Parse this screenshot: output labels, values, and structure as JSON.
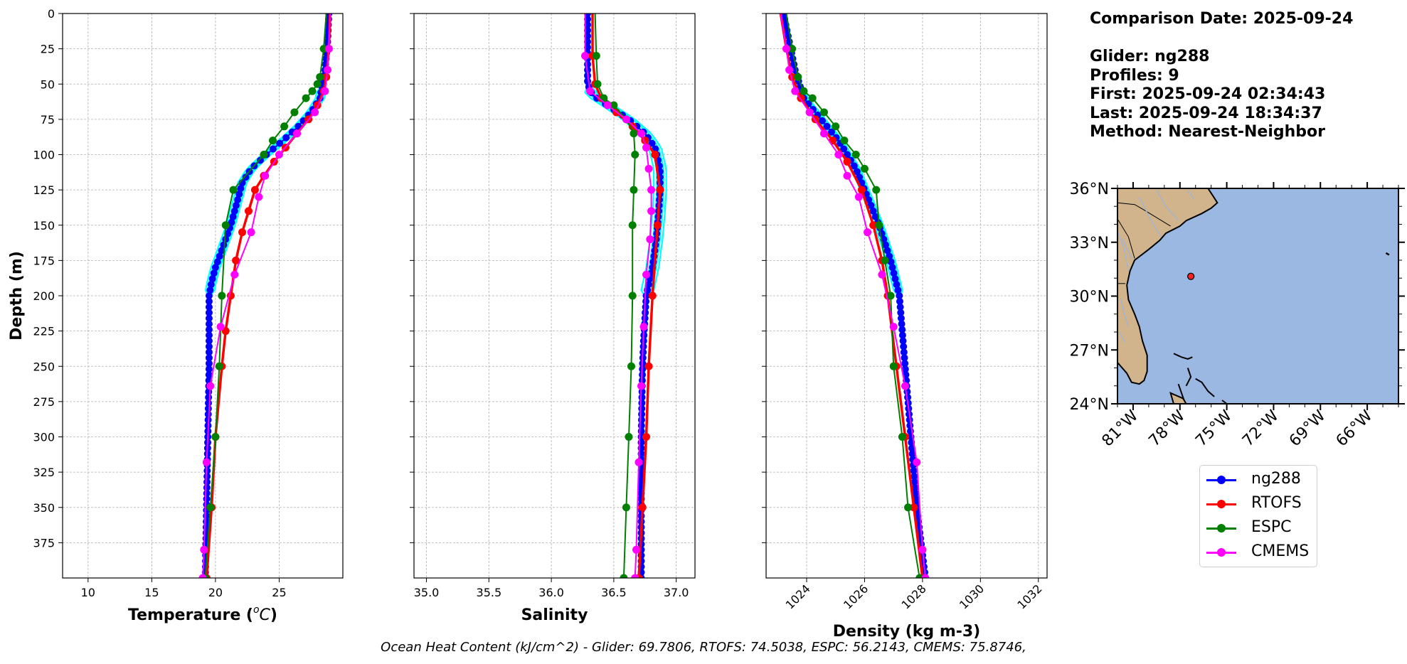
{
  "info": {
    "comparison_date": "Comparison Date: 2025-09-24",
    "glider": "Glider: ng288",
    "profiles": "Profiles: 9",
    "first": "First: 2025-09-24 02:34:43",
    "last": "Last: 2025-09-24 18:34:37",
    "method": "Method: Nearest-Neighbor"
  },
  "footer": "Ocean Heat Content (kJ/cm^2) - Glider: 69.7806,  RTOFS: 74.5038,  ESPC: 56.2143,  CMEMS: 75.8746,",
  "legend": [
    {
      "label": "ng288",
      "color": "#0000ff"
    },
    {
      "label": "RTOFS",
      "color": "#ff0000"
    },
    {
      "label": "ESPC",
      "color": "#008000"
    },
    {
      "label": "CMEMS",
      "color": "#ff00ff"
    }
  ],
  "map": {
    "lat_labels": [
      "36°N",
      "33°N",
      "30°N",
      "27°N",
      "24°N"
    ],
    "lon_labels": [
      "81°W",
      "78°W",
      "75°W",
      "72°W",
      "69°W",
      "66°W"
    ],
    "station": {
      "lon": -77.3,
      "lat": 31.1
    },
    "ocean_color": "#9ab8e2",
    "land_color": "#d2b48c"
  },
  "chart_data": [
    {
      "type": "line",
      "xlabel": "Temperature ($^{o}C$)",
      "ylabel": "Depth (m)",
      "xlim": [
        8,
        30
      ],
      "ylim": [
        400,
        0
      ],
      "xticks": [
        "10",
        "15",
        "20",
        "25"
      ],
      "yticks": [
        "0",
        "25",
        "50",
        "75",
        "100",
        "125",
        "150",
        "175",
        "200",
        "225",
        "250",
        "275",
        "300",
        "325",
        "350",
        "375"
      ],
      "grid": true,
      "series": [
        {
          "name": "ng288",
          "color": "#0000ff",
          "depth": [
            0,
            20,
            40,
            60,
            70,
            80,
            90,
            100,
            110,
            120,
            130,
            140,
            150,
            160,
            170,
            180,
            190,
            200,
            220,
            250,
            300,
            350,
            400
          ],
          "values": [
            28.9,
            28.8,
            28.6,
            28.2,
            27.5,
            26.5,
            25.3,
            24.0,
            22.8,
            22.1,
            21.8,
            21.5,
            21.2,
            20.8,
            20.4,
            20.0,
            19.7,
            19.5,
            19.5,
            19.5,
            19.4,
            19.3,
            19.2
          ]
        },
        {
          "name": "RTOFS",
          "color": "#ff0000",
          "depth": [
            0,
            25,
            45,
            55,
            65,
            75,
            85,
            95,
            105,
            115,
            125,
            140,
            155,
            175,
            200,
            225,
            250,
            300,
            350,
            400
          ],
          "values": [
            29.0,
            28.9,
            28.7,
            28.5,
            28.0,
            27.3,
            26.4,
            25.5,
            24.6,
            23.8,
            23.1,
            22.6,
            22.1,
            21.6,
            21.2,
            20.8,
            20.5,
            20.0,
            19.7,
            19.3
          ]
        },
        {
          "name": "ESPC",
          "color": "#008000",
          "depth": [
            0,
            25,
            45,
            50,
            55,
            60,
            70,
            80,
            90,
            100,
            125,
            150,
            200,
            250,
            300,
            350,
            400
          ],
          "values": [
            28.7,
            28.5,
            28.2,
            28.0,
            27.6,
            27.1,
            26.2,
            25.4,
            24.5,
            23.8,
            21.4,
            20.8,
            20.5,
            20.3,
            20.0,
            19.6,
            19.2
          ]
        },
        {
          "name": "CMEMS",
          "color": "#ff00ff",
          "depth": [
            0,
            25,
            40,
            55,
            70,
            85,
            100,
            115,
            130,
            155,
            185,
            222,
            264,
            318,
            380,
            400
          ],
          "values": [
            29.0,
            28.9,
            28.8,
            28.6,
            27.8,
            26.4,
            25.0,
            23.9,
            23.4,
            22.8,
            21.5,
            20.4,
            19.6,
            19.3,
            19.1,
            19.0
          ]
        }
      ]
    },
    {
      "type": "line",
      "xlabel": "Salinity",
      "ylabel": "",
      "xlim": [
        34.9,
        37.15
      ],
      "ylim": [
        400,
        0
      ],
      "xticks": [
        "35.0",
        "35.5",
        "36.0",
        "36.5",
        "37.0"
      ],
      "grid": true,
      "series": [
        {
          "name": "ng288",
          "color": "#0000ff",
          "depth": [
            0,
            30,
            50,
            58,
            65,
            75,
            85,
            95,
            110,
            125,
            140,
            160,
            180,
            200,
            230,
            250,
            300,
            350,
            400
          ],
          "values": [
            36.29,
            36.29,
            36.29,
            36.33,
            36.45,
            36.62,
            36.75,
            36.83,
            36.87,
            36.87,
            36.86,
            36.84,
            36.81,
            36.76,
            36.74,
            36.73,
            36.72,
            36.72,
            36.72
          ]
        },
        {
          "name": "RTOFS",
          "color": "#ff0000",
          "depth": [
            0,
            30,
            50,
            60,
            70,
            80,
            90,
            100,
            125,
            150,
            200,
            250,
            300,
            350,
            400
          ],
          "values": [
            36.33,
            36.33,
            36.35,
            36.4,
            36.52,
            36.65,
            36.75,
            36.83,
            36.87,
            36.85,
            36.81,
            36.78,
            36.76,
            36.73,
            36.7
          ]
        },
        {
          "name": "ESPC",
          "color": "#008000",
          "depth": [
            0,
            30,
            50,
            60,
            65,
            75,
            85,
            100,
            125,
            150,
            200,
            250,
            300,
            350,
            400
          ],
          "values": [
            36.35,
            36.36,
            36.37,
            36.42,
            36.5,
            36.6,
            36.66,
            36.67,
            36.66,
            36.65,
            36.65,
            36.64,
            36.62,
            36.6,
            36.58
          ]
        },
        {
          "name": "CMEMS",
          "color": "#ff00ff",
          "depth": [
            0,
            30,
            55,
            65,
            75,
            85,
            95,
            110,
            125,
            140,
            160,
            185,
            222,
            264,
            318,
            380,
            400
          ],
          "values": [
            36.27,
            36.27,
            36.31,
            36.45,
            36.6,
            36.72,
            36.76,
            36.78,
            36.8,
            36.8,
            36.79,
            36.76,
            36.74,
            36.72,
            36.7,
            36.68,
            36.67
          ]
        }
      ]
    },
    {
      "type": "line",
      "xlabel": "Density (kg m-3)",
      "ylabel": "",
      "xlim": [
        1022.6,
        1032.3
      ],
      "ylim": [
        400,
        0
      ],
      "xticks": [
        "1024",
        "1026",
        "1028",
        "1030",
        "1032"
      ],
      "grid": true,
      "series": [
        {
          "name": "ng288",
          "color": "#0000ff",
          "depth": [
            0,
            20,
            40,
            60,
            70,
            80,
            90,
            100,
            110,
            120,
            130,
            140,
            150,
            175,
            200,
            225,
            250,
            300,
            350,
            400
          ],
          "values": [
            1023.2,
            1023.4,
            1023.6,
            1023.9,
            1024.3,
            1024.7,
            1025.1,
            1025.4,
            1025.7,
            1025.9,
            1026.1,
            1026.3,
            1026.5,
            1026.9,
            1027.2,
            1027.3,
            1027.4,
            1027.6,
            1027.8,
            1028.1
          ]
        },
        {
          "name": "RTOFS",
          "color": "#ff0000",
          "depth": [
            0,
            25,
            45,
            60,
            75,
            90,
            105,
            125,
            150,
            175,
            200,
            250,
            300,
            350,
            400
          ],
          "values": [
            1023.1,
            1023.3,
            1023.5,
            1023.8,
            1024.3,
            1024.9,
            1025.4,
            1025.9,
            1026.3,
            1026.6,
            1026.8,
            1027.1,
            1027.4,
            1027.7,
            1028.0
          ]
        },
        {
          "name": "ESPC",
          "color": "#008000",
          "depth": [
            0,
            25,
            45,
            55,
            60,
            70,
            80,
            90,
            100,
            110,
            125,
            150,
            175,
            200,
            250,
            300,
            350,
            400
          ],
          "values": [
            1023.3,
            1023.5,
            1023.7,
            1023.9,
            1024.2,
            1024.6,
            1025.0,
            1025.3,
            1025.7,
            1026.0,
            1026.4,
            1026.5,
            1026.7,
            1026.9,
            1027.0,
            1027.3,
            1027.5,
            1027.9
          ]
        },
        {
          "name": "CMEMS",
          "color": "#ff00ff",
          "depth": [
            0,
            25,
            40,
            55,
            70,
            85,
            100,
            115,
            130,
            155,
            185,
            222,
            264,
            318,
            380,
            400
          ],
          "values": [
            1023.1,
            1023.3,
            1023.4,
            1023.6,
            1024.1,
            1024.6,
            1025.1,
            1025.4,
            1025.8,
            1026.1,
            1026.6,
            1027.0,
            1027.4,
            1027.8,
            1028.0,
            1028.1
          ]
        }
      ]
    }
  ]
}
